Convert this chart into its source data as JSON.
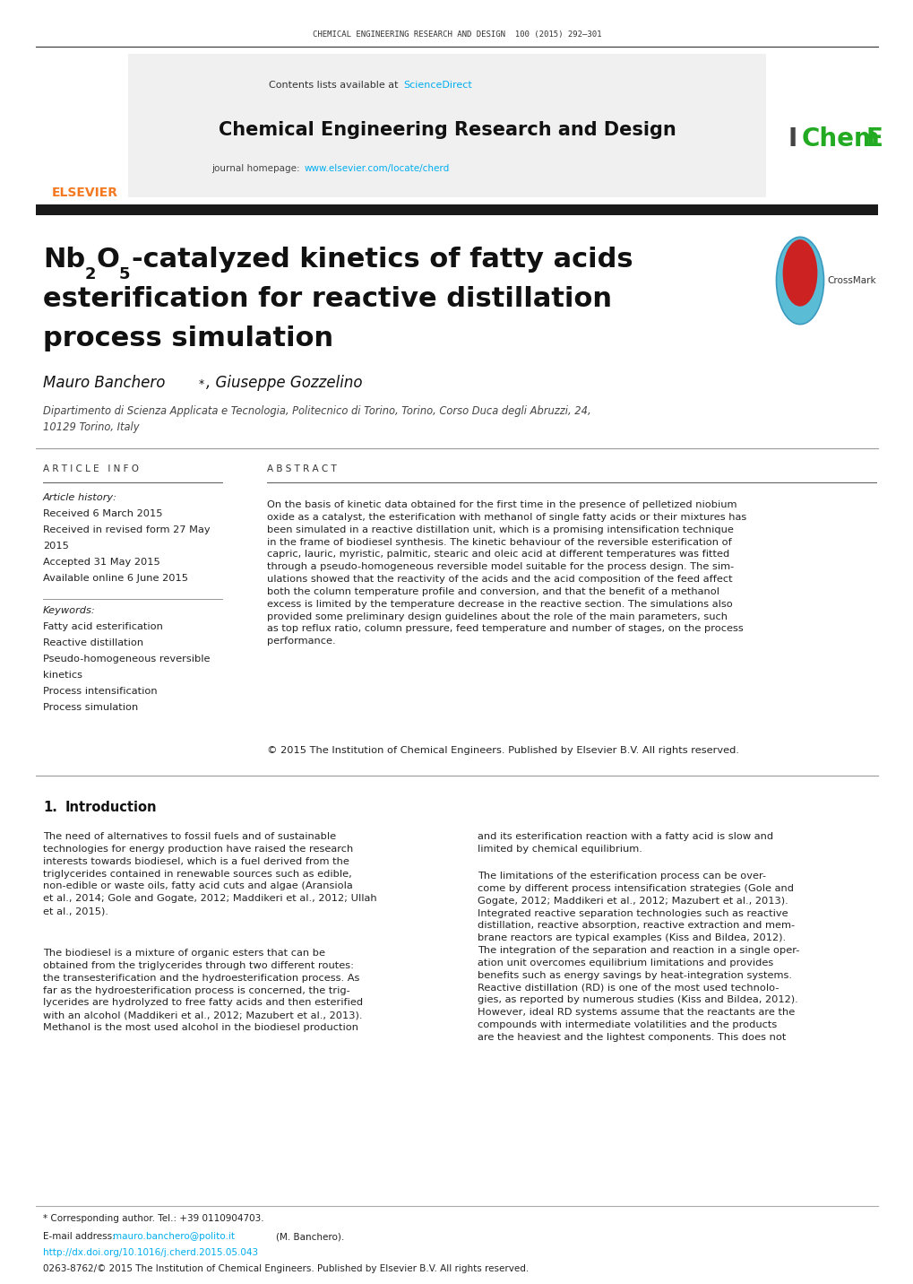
{
  "page_width": 10.2,
  "page_height": 14.32,
  "bg_color": "#ffffff",
  "journal_header": "CHEMICAL ENGINEERING RESEARCH AND DESIGN  100 (2015) 292–301",
  "journal_name": "Chemical Engineering Research and Design",
  "contents_text": "Contents lists available at",
  "sciencedirect_text": "ScienceDirect",
  "journal_homepage_text": "journal homepage:",
  "journal_url": "www.elsevier.com/locate/cherd",
  "elsevier_text": "ELSEVIER",
  "elsevier_color": "#f47920",
  "sciencedirect_color": "#00aeef",
  "url_color": "#00aeef",
  "header_box_bg": "#f0f0f0",
  "thick_bar_color": "#1a1a1a",
  "article_info_header": "A R T I C L E   I N F O",
  "abstract_header": "A B S T R A C T",
  "article_history_label": "Article history:",
  "received1": "Received 6 March 2015",
  "received2": "Received in revised form 27 May",
  "received2b": "2015",
  "accepted": "Accepted 31 May 2015",
  "available": "Available online 6 June 2015",
  "keywords_label": "Keywords:",
  "keyword1": "Fatty acid esterification",
  "keyword2": "Reactive distillation",
  "keyword3": "Pseudo-homogeneous reversible",
  "keyword3b": "kinetics",
  "keyword4": "Process intensification",
  "keyword5": "Process simulation",
  "copyright_text": "© 2015 The Institution of Chemical Engineers. Published by Elsevier B.V. All rights reserved.",
  "affiliation1": "Dipartimento di Scienza Applicata e Tecnologia, Politecnico di Torino, Torino, Corso Duca degli Abruzzi, 24,",
  "affiliation2": "10129 Torino, Italy",
  "footnote_star": "* Corresponding author. Tel.: +39 0110904703.",
  "footnote_email_label": "E-mail address:",
  "footnote_email": "mauro.banchero@polito.it",
  "footnote_name": "(M. Banchero).",
  "footnote_doi": "http://dx.doi.org/10.1016/j.cherd.2015.05.043",
  "footnote_copyright": "0263-8762/© 2015 The Institution of Chemical Engineers. Published by Elsevier B.V. All rights reserved."
}
